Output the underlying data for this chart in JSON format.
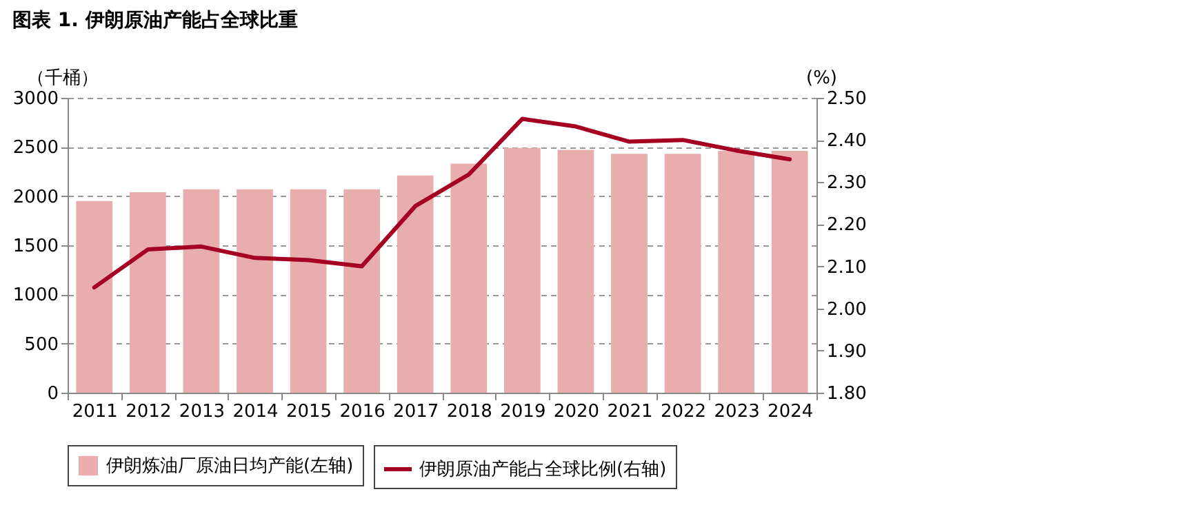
{
  "chart_data": {
    "type": "bar",
    "title": "图表 1. 伊朗原油产能占全球比重",
    "categories": [
      "2011",
      "2012",
      "2013",
      "2014",
      "2015",
      "2016",
      "2017",
      "2018",
      "2019",
      "2020",
      "2021",
      "2022",
      "2023",
      "2024"
    ],
    "series": [
      {
        "name": "伊朗炼油厂原油日均产能(左轴)",
        "color": "#e8adad",
        "values": [
          1950,
          2040,
          2070,
          2070,
          2070,
          2070,
          2210,
          2330,
          2490,
          2470,
          2430,
          2430,
          2460,
          2460
        ]
      },
      {
        "name": "伊朗原油产能占全球比例(右轴)",
        "type": "line",
        "axis": "y2",
        "color": "#a50021",
        "values": [
          2.05,
          2.14,
          2.147,
          2.12,
          2.115,
          2.1,
          2.243,
          2.318,
          2.45,
          2.432,
          2.396,
          2.4,
          2.375,
          2.354
        ]
      }
    ],
    "ylabel": "（千桶）",
    "y2label": "(%)",
    "ylim": [
      0,
      3000
    ],
    "yticks": [
      0,
      500,
      1000,
      1500,
      2000,
      2500,
      3000
    ],
    "y2lim": [
      1.8,
      2.5
    ],
    "y2ticks": [
      {
        "value": 1.8,
        "label": "1.80"
      },
      {
        "value": 1.9,
        "label": "1.90"
      },
      {
        "value": 2.0,
        "label": "2.00"
      },
      {
        "value": 2.1,
        "label": "2.10"
      },
      {
        "value": 2.2,
        "label": "2.20"
      },
      {
        "value": 2.3,
        "label": "2.30"
      },
      {
        "value": 2.4,
        "label": "2.40"
      },
      {
        "value": 2.5,
        "label": "2.50"
      }
    ],
    "grid": "y",
    "legend": "bottom"
  }
}
